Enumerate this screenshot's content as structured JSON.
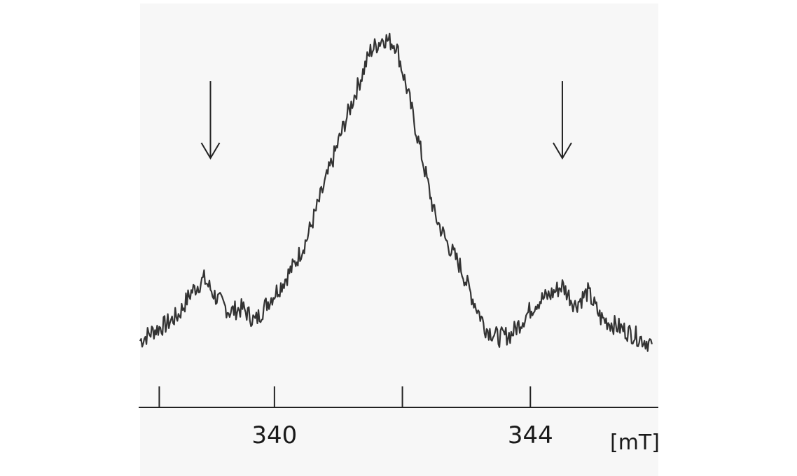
{
  "chart_data": {
    "type": "line",
    "title": "",
    "xlabel": "[mT]",
    "ylabel": "",
    "xlim": [
      337.9,
      346.0
    ],
    "ylim": [
      -0.15,
      1.0
    ],
    "grid": false,
    "legend": "none",
    "x_major_ticks": [
      340,
      344
    ],
    "x_tick_marks": [
      338.2,
      340,
      342,
      344
    ],
    "annotations": [
      {
        "kind": "arrow-down",
        "x": 339.0
      },
      {
        "kind": "arrow-down",
        "x": 344.5
      }
    ],
    "series": [
      {
        "color": "#333333",
        "x": [
          337.9,
          338.1,
          338.3,
          338.5,
          338.7,
          338.9,
          339.1,
          339.3,
          339.5,
          339.7,
          339.9,
          340.1,
          340.3,
          340.5,
          340.7,
          340.9,
          341.1,
          341.3,
          341.5,
          341.7,
          341.9,
          342.1,
          342.3,
          342.5,
          342.7,
          342.9,
          343.1,
          343.3,
          343.5,
          343.7,
          343.9,
          344.1,
          344.3,
          344.5,
          344.7,
          344.9,
          345.1,
          345.3,
          345.5,
          345.7,
          345.9
        ],
        "y": [
          0.05,
          0.08,
          0.1,
          0.13,
          0.2,
          0.24,
          0.18,
          0.14,
          0.15,
          0.11,
          0.17,
          0.22,
          0.28,
          0.36,
          0.48,
          0.6,
          0.72,
          0.83,
          0.94,
          0.98,
          0.96,
          0.8,
          0.62,
          0.44,
          0.35,
          0.28,
          0.18,
          0.09,
          0.06,
          0.07,
          0.12,
          0.17,
          0.19,
          0.22,
          0.16,
          0.2,
          0.12,
          0.1,
          0.08,
          0.06,
          0.04
        ]
      }
    ]
  },
  "colors": {
    "plot_background": "#f7f7f7",
    "line": "#333333",
    "axis": "#222222"
  }
}
